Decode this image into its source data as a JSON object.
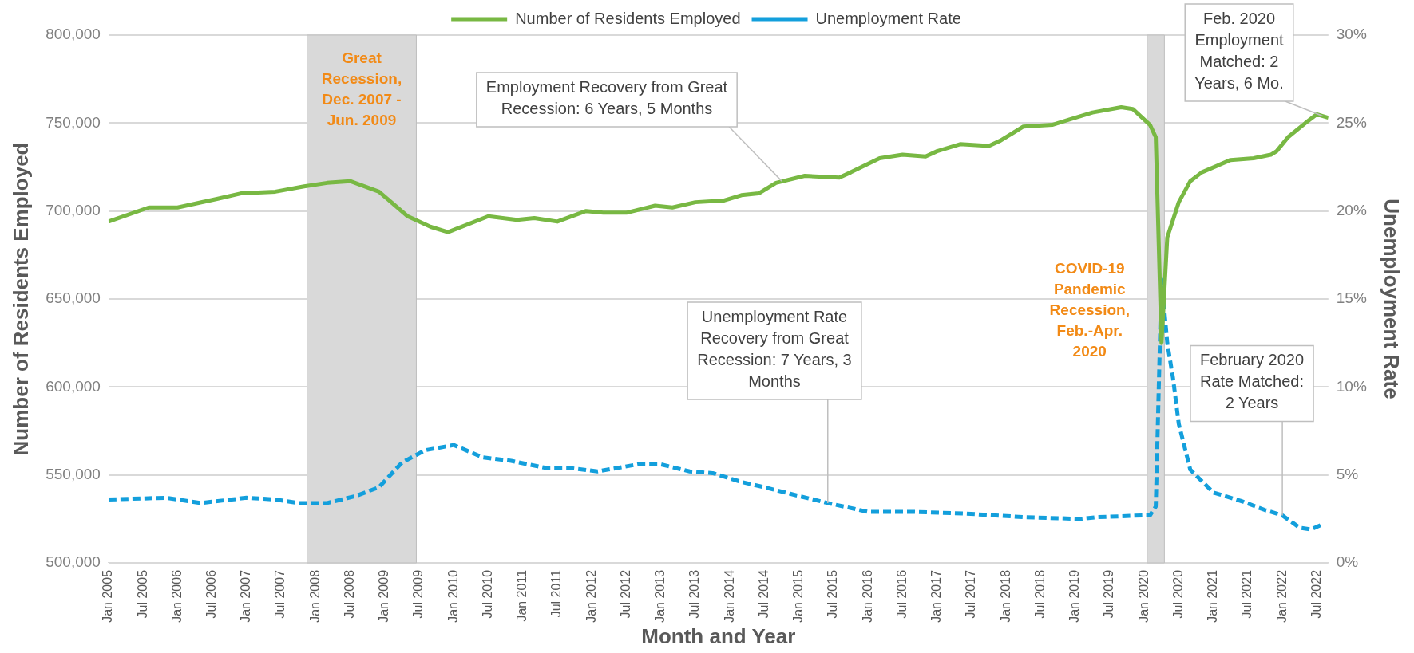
{
  "chart_data": {
    "type": "line",
    "xlabel": "Month and Year",
    "ylabel": "Number of Residents Employed",
    "y2label": "Unemployment Rate",
    "xlim": [
      "2005-01",
      "2022-09"
    ],
    "xticks": [
      {
        "value": "2005-01",
        "label": "Jan 2005"
      },
      {
        "value": "2005-07",
        "label": "Jul 2005"
      },
      {
        "value": "2006-01",
        "label": "Jan 2006"
      },
      {
        "value": "2006-07",
        "label": "Jul 2006"
      },
      {
        "value": "2007-01",
        "label": "Jan 2007"
      },
      {
        "value": "2007-07",
        "label": "Jul 2007"
      },
      {
        "value": "2008-01",
        "label": "Jan 2008"
      },
      {
        "value": "2008-07",
        "label": "Jul 2008"
      },
      {
        "value": "2009-01",
        "label": "Jan 2009"
      },
      {
        "value": "2009-07",
        "label": "Jul 2009"
      },
      {
        "value": "2010-01",
        "label": "Jan 2010"
      },
      {
        "value": "2010-07",
        "label": "Jul 2010"
      },
      {
        "value": "2011-01",
        "label": "Jan 2011"
      },
      {
        "value": "2011-07",
        "label": "Jul 2011"
      },
      {
        "value": "2012-01",
        "label": "Jan 2012"
      },
      {
        "value": "2012-07",
        "label": "Jul 2012"
      },
      {
        "value": "2013-01",
        "label": "Jan 2013"
      },
      {
        "value": "2013-07",
        "label": "Jul 2013"
      },
      {
        "value": "2014-01",
        "label": "Jan 2014"
      },
      {
        "value": "2014-07",
        "label": "Jul 2014"
      },
      {
        "value": "2015-01",
        "label": "Jan 2015"
      },
      {
        "value": "2015-07",
        "label": "Jul 2015"
      },
      {
        "value": "2016-01",
        "label": "Jan 2016"
      },
      {
        "value": "2016-07",
        "label": "Jul 2016"
      },
      {
        "value": "2017-01",
        "label": "Jan 2017"
      },
      {
        "value": "2017-07",
        "label": "Jul 2017"
      },
      {
        "value": "2018-01",
        "label": "Jan 2018"
      },
      {
        "value": "2018-07",
        "label": "Jul 2018"
      },
      {
        "value": "2019-01",
        "label": "Jan 2019"
      },
      {
        "value": "2019-07",
        "label": "Jul 2019"
      },
      {
        "value": "2020-01",
        "label": "Jan 2020"
      },
      {
        "value": "2020-07",
        "label": "Jul 2020"
      },
      {
        "value": "2021-01",
        "label": "Jan 2021"
      },
      {
        "value": "2021-07",
        "label": "Jul 2021"
      },
      {
        "value": "2022-01",
        "label": "Jan 2022"
      },
      {
        "value": "2022-07",
        "label": "Jul 2022"
      }
    ],
    "ylim": [
      500000,
      800000
    ],
    "yticks": [
      {
        "value": 500000,
        "label": "500,000"
      },
      {
        "value": 550000,
        "label": "550,000"
      },
      {
        "value": 600000,
        "label": "600,000"
      },
      {
        "value": 650000,
        "label": "650,000"
      },
      {
        "value": 700000,
        "label": "700,000"
      },
      {
        "value": 750000,
        "label": "750,000"
      },
      {
        "value": 800000,
        "label": "800,000"
      }
    ],
    "y2lim": [
      0,
      30
    ],
    "y2ticks": [
      {
        "value": 0,
        "label": "0%"
      },
      {
        "value": 5,
        "label": "5%"
      },
      {
        "value": 10,
        "label": "10%"
      },
      {
        "value": 15,
        "label": "15%"
      },
      {
        "value": 20,
        "label": "20%"
      },
      {
        "value": 25,
        "label": "25%"
      },
      {
        "value": 30,
        "label": "30%"
      }
    ],
    "grid": "y",
    "legend": "top",
    "marker": "none",
    "series": [
      {
        "name": "Number of Residents Employed",
        "color": "#78b843",
        "line_style": "solid",
        "x": [
          "2005-01",
          "2005-08",
          "2006-01",
          "2006-08",
          "2006-12",
          "2007-06",
          "2007-11",
          "2008-03",
          "2008-07",
          "2008-12",
          "2009-05",
          "2009-09",
          "2009-12",
          "2010-07",
          "2010-12",
          "2011-03",
          "2011-07",
          "2011-12",
          "2012-03",
          "2012-07",
          "2012-12",
          "2013-03",
          "2013-07",
          "2013-12",
          "2014-03",
          "2014-06",
          "2014-09",
          "2015-02",
          "2015-08",
          "2015-10",
          "2016-03",
          "2016-07",
          "2016-11",
          "2017-01",
          "2017-05",
          "2017-10",
          "2017-12",
          "2018-04",
          "2018-09",
          "2018-12",
          "2019-04",
          "2019-09",
          "2019-11",
          "2020-02",
          "2020-03",
          "2020-04",
          "2020-05",
          "2020-07",
          "2020-09",
          "2020-11",
          "2021-04",
          "2021-08",
          "2021-11",
          "2021-12",
          "2022-02",
          "2022-05",
          "2022-07",
          "2022-09"
        ],
        "values": [
          694000,
          702000,
          702000,
          707000,
          710000,
          711000,
          714000,
          716000,
          717000,
          711000,
          697000,
          691000,
          688000,
          697000,
          695000,
          696000,
          694000,
          700000,
          699000,
          699000,
          703000,
          702000,
          705000,
          706000,
          709000,
          710000,
          716000,
          720000,
          719000,
          722000,
          730000,
          732000,
          731000,
          734000,
          738000,
          737000,
          740000,
          748000,
          749000,
          752000,
          756000,
          759000,
          758000,
          749000,
          742000,
          625000,
          685000,
          705000,
          717000,
          722000,
          729000,
          730000,
          732000,
          734000,
          742000,
          750000,
          755000,
          753000
        ]
      },
      {
        "name": "Unemployment Rate",
        "color": "#139fdc",
        "line_style": "dashed",
        "axis": "y2",
        "x": [
          "2005-01",
          "2005-11",
          "2006-05",
          "2007-01",
          "2007-06",
          "2007-10",
          "2008-03",
          "2008-08",
          "2008-12",
          "2009-04",
          "2009-08",
          "2010-01",
          "2010-06",
          "2010-11",
          "2011-05",
          "2011-09",
          "2012-02",
          "2012-09",
          "2013-01",
          "2013-06",
          "2013-10",
          "2014-03",
          "2014-07",
          "2015-01",
          "2015-06",
          "2016-01",
          "2016-09",
          "2017-06",
          "2018-04",
          "2019-02",
          "2019-05",
          "2020-01",
          "2020-02",
          "2020-03",
          "2020-04",
          "2020-05",
          "2020-06",
          "2020-07",
          "2020-09",
          "2021-01",
          "2021-06",
          "2021-10",
          "2022-01",
          "2022-04",
          "2022-06",
          "2022-08"
        ],
        "values": [
          3.6,
          3.7,
          3.4,
          3.7,
          3.6,
          3.4,
          3.4,
          3.8,
          4.3,
          5.7,
          6.4,
          6.7,
          6.0,
          5.8,
          5.4,
          5.4,
          5.2,
          5.6,
          5.6,
          5.2,
          5.1,
          4.6,
          4.3,
          3.8,
          3.4,
          2.9,
          2.9,
          2.8,
          2.6,
          2.5,
          2.6,
          2.7,
          2.7,
          3.2,
          16.1,
          12.5,
          10.5,
          7.9,
          5.3,
          4.0,
          3.5,
          3.0,
          2.7,
          2.0,
          1.9,
          2.2
        ]
      }
    ],
    "bands": [
      {
        "axis": "x",
        "from": "2007-12",
        "to": "2009-06",
        "label": "Great Recession, Dec. 2007 - Jun. 2009",
        "color": "#d9d9d9"
      },
      {
        "axis": "x",
        "from": "2020-02",
        "to": "2020-04",
        "label": "COVID-19 Pandemic Recession, Feb.-Apr. 2020",
        "color": "#d9d9d9"
      }
    ],
    "annotations": [
      {
        "text": "Employment Recovery from Great Recession: 6 Years, 5 Months",
        "x": "2014-10",
        "y": 717000
      },
      {
        "text": "Unemployment Rate Recovery from Great Recession: 7 Years, 3 Months",
        "x": "2015-06",
        "y": 534000
      },
      {
        "text": "Feb. 2020 Employment Matched: 2 Years, 6 Mo.",
        "x": "2022-08",
        "y": 754000
      },
      {
        "text": "February 2020 Rate Matched: 2 Years",
        "x": "2022-01",
        "y": 527000
      }
    ]
  }
}
